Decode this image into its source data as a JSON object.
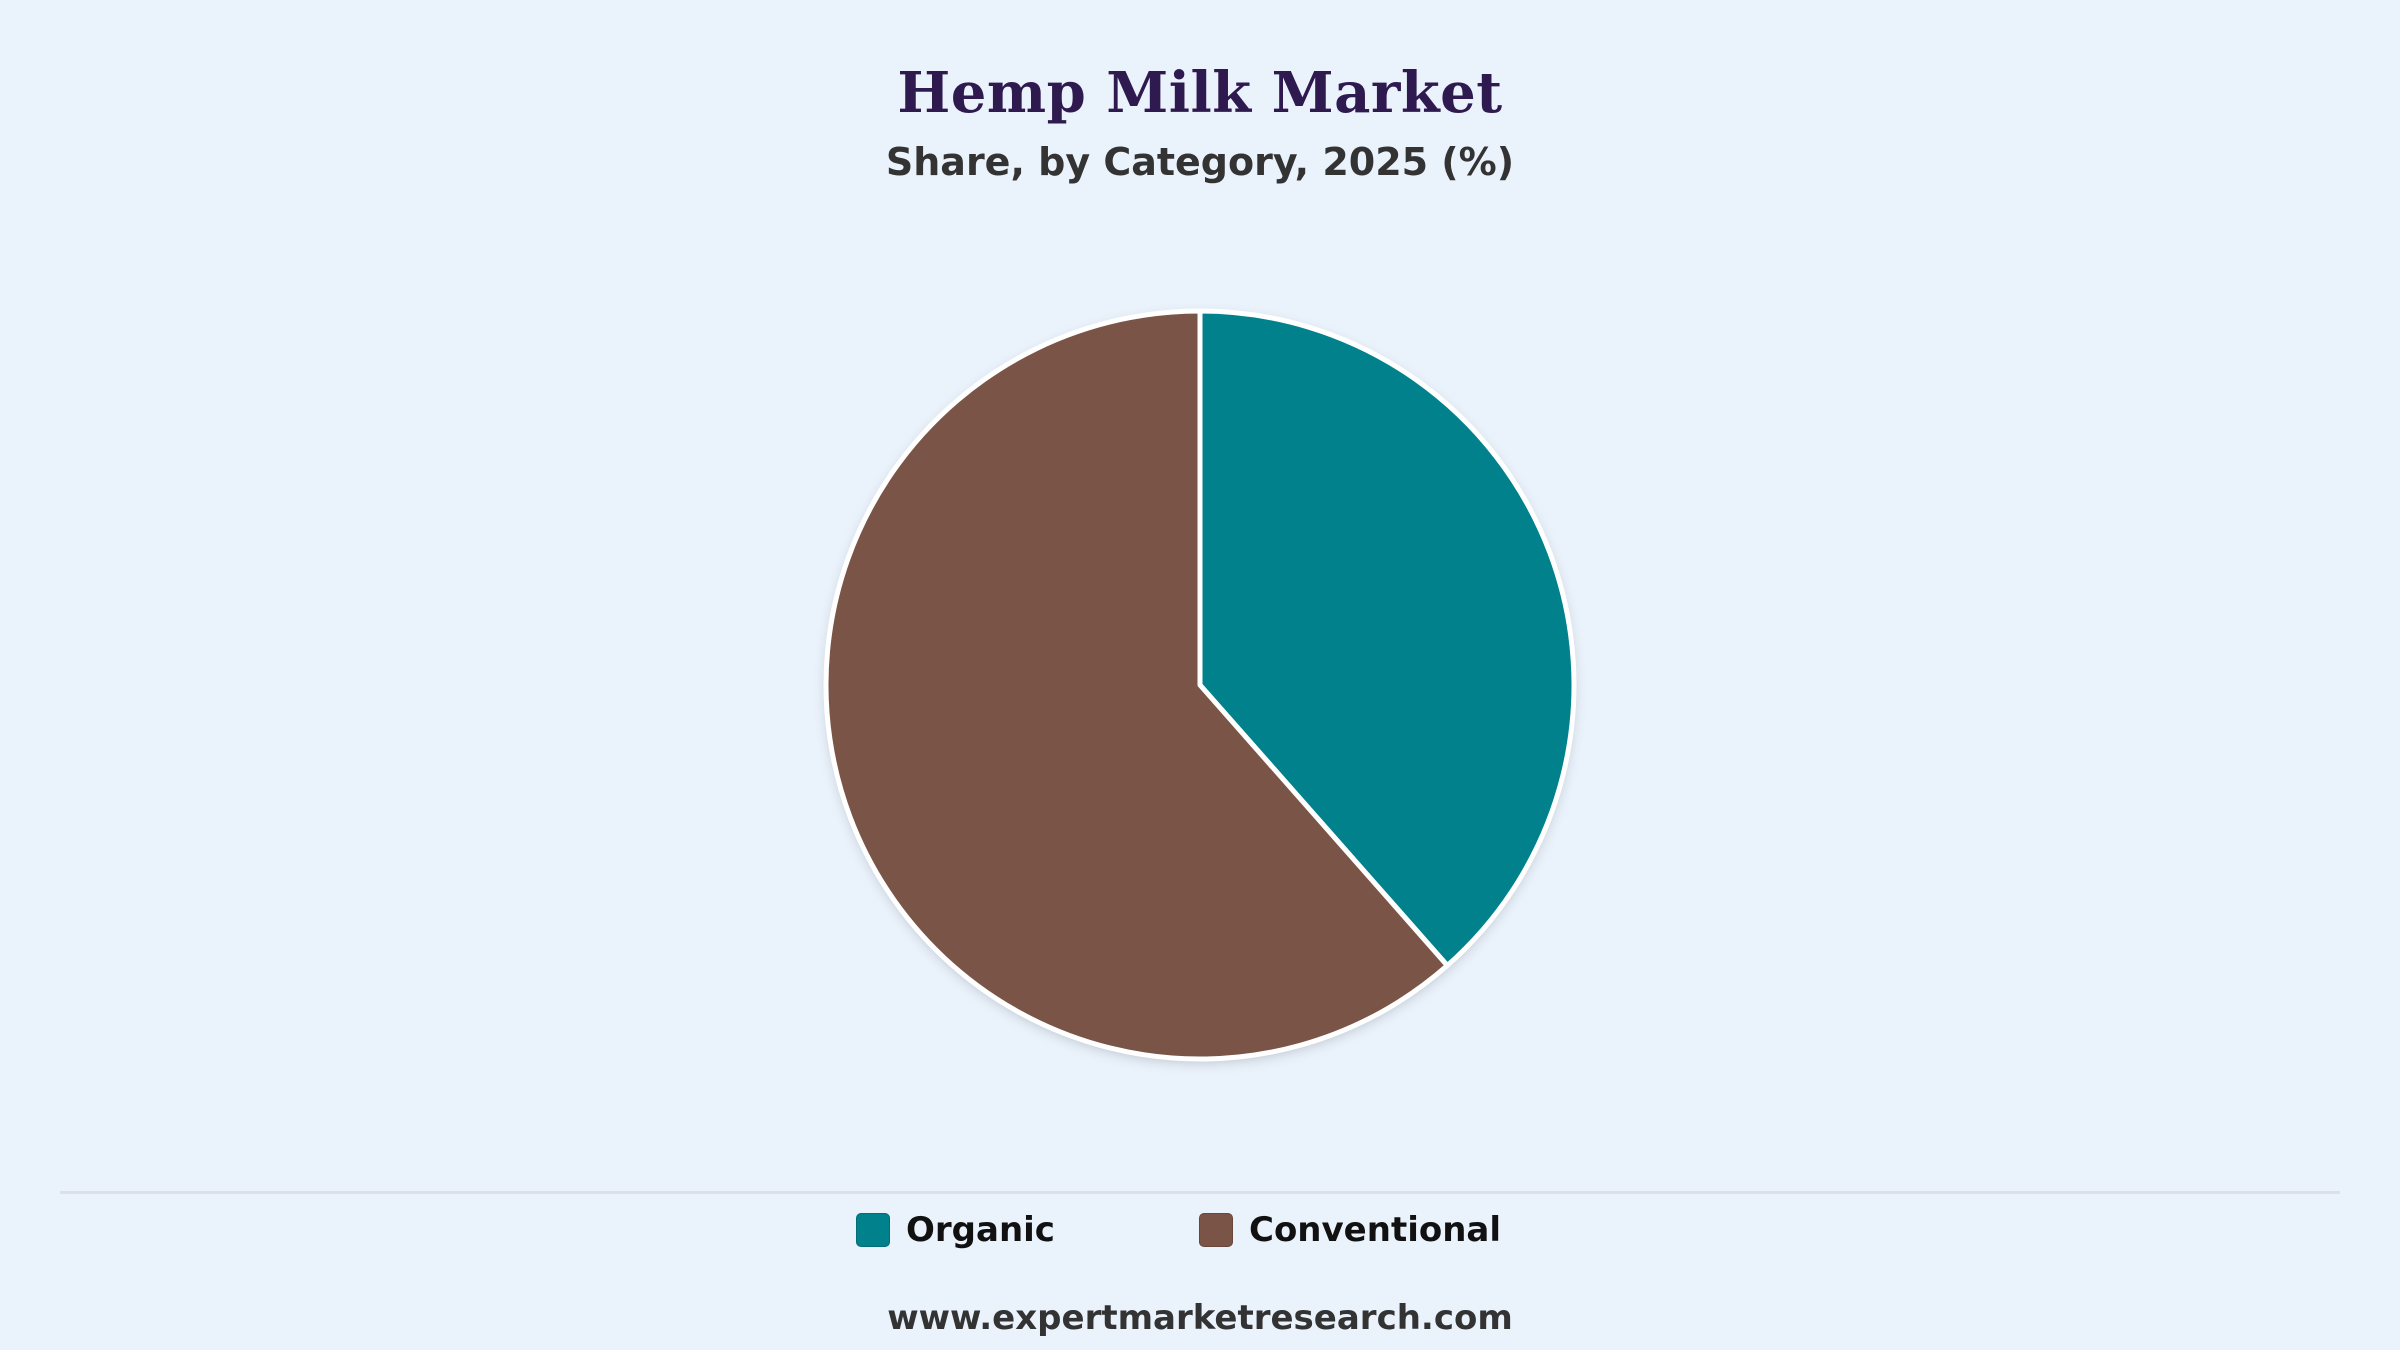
{
  "chart_data": {
    "type": "pie",
    "title": "Hemp Milk Market",
    "subtitle": "Share, by Category, 2025 (%)",
    "categories": [
      "Organic",
      "Conventional"
    ],
    "values": [
      38.5,
      61.5
    ],
    "colors": [
      "#00818c",
      "#7a5446"
    ],
    "start_angle": "12 o'clock",
    "direction": "clockwise",
    "legend_position": "bottom"
  },
  "footer": {
    "source": "www.expertmarketresearch.com"
  }
}
